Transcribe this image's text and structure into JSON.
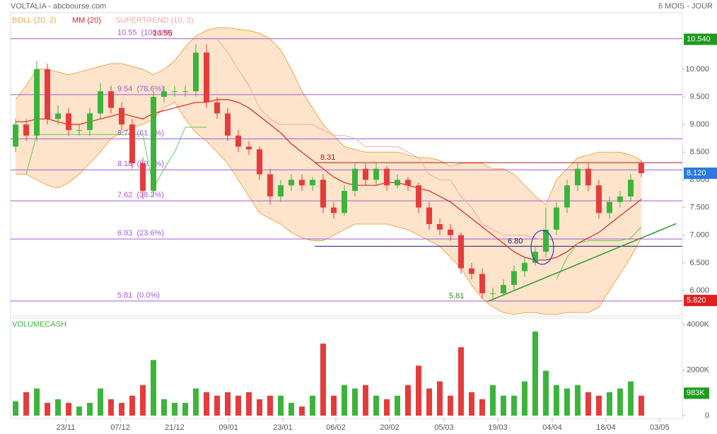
{
  "chart_data": {
    "type": "candlestick",
    "title": "VOLTALIA - abcbourse.com",
    "period": "6 MOIS - JOUR",
    "xlim": [
      -0.47,
      62.87
    ],
    "xticks": [
      {
        "value": 4.73,
        "label": "23/11"
      },
      {
        "value": 9.87,
        "label": "07/12"
      },
      {
        "value": 15.0,
        "label": "21/12"
      },
      {
        "value": 20.07,
        "label": "09/01"
      },
      {
        "value": 25.2,
        "label": "23/01"
      },
      {
        "value": 30.2,
        "label": "06/02"
      },
      {
        "value": 35.27,
        "label": "20/02"
      },
      {
        "value": 40.4,
        "label": "05/03"
      },
      {
        "value": 45.47,
        "label": "19/03"
      },
      {
        "value": 50.6,
        "label": "04/04"
      },
      {
        "value": 55.67,
        "label": "18/04"
      },
      {
        "value": 60.73,
        "label": "03/05"
      }
    ],
    "ylim": [
      5.54,
      11.02
    ],
    "yticks": [
      {
        "value": 10,
        "label": "10.000"
      },
      {
        "value": 9.5,
        "label": "9.500"
      },
      {
        "value": 9,
        "label": "9.000"
      },
      {
        "value": 8.5,
        "label": "8.500"
      },
      {
        "value": 8,
        "label": "8.000"
      },
      {
        "value": 7.5,
        "label": "7.500"
      },
      {
        "value": 7,
        "label": "7.000"
      },
      {
        "value": 6.5,
        "label": "6.500"
      },
      {
        "value": 6,
        "label": "6.000"
      }
    ],
    "up_color": "#3cb43c",
    "down_color": "#e43c3c",
    "candles": {
      "open": [
        8.6,
        9.0,
        8.8,
        10.0,
        9.1,
        9.2,
        8.9,
        8.9,
        9.2,
        9.6,
        9.3,
        9.0,
        8.3,
        7.8,
        9.5,
        9.6,
        9.6,
        9.6,
        10.3,
        9.4,
        9.2,
        8.8,
        8.6,
        8.55,
        8.1,
        7.7,
        7.9,
        8.0,
        7.9,
        8.0,
        7.5,
        7.4,
        7.8,
        8.2,
        8.0,
        8.2,
        7.9,
        8.0,
        7.9,
        7.5,
        7.2,
        7.1,
        7.0,
        6.4,
        6.3,
        5.95,
        5.95,
        6.1,
        6.35,
        6.5,
        6.7,
        7.1,
        7.5,
        7.9,
        8.2,
        7.9,
        7.4,
        7.6,
        7.7,
        8.3
      ],
      "high": [
        9.1,
        9.1,
        10.15,
        10.1,
        9.35,
        9.3,
        9.0,
        9.3,
        9.75,
        9.7,
        9.4,
        9.1,
        8.4,
        9.6,
        9.7,
        9.7,
        9.7,
        10.45,
        10.45,
        9.5,
        9.3,
        8.9,
        8.7,
        8.6,
        8.2,
        8.0,
        8.1,
        8.1,
        8.05,
        8.1,
        7.6,
        7.9,
        8.3,
        8.3,
        8.3,
        8.25,
        8.1,
        8.05,
        7.95,
        7.6,
        7.3,
        7.2,
        7.05,
        6.5,
        6.4,
        6.05,
        6.2,
        6.45,
        6.6,
        6.8,
        7.5,
        7.6,
        8.0,
        8.3,
        8.3,
        8.0,
        7.7,
        7.8,
        8.1,
        8.35
      ],
      "low": [
        8.5,
        8.7,
        8.7,
        9.0,
        9.0,
        8.8,
        8.8,
        8.8,
        9.1,
        9.2,
        8.9,
        8.2,
        7.65,
        7.7,
        9.4,
        9.5,
        9.5,
        9.5,
        9.3,
        9.1,
        8.7,
        8.5,
        8.45,
        8.0,
        7.55,
        7.6,
        7.8,
        7.8,
        7.8,
        7.4,
        7.3,
        7.35,
        7.7,
        7.9,
        7.9,
        7.8,
        7.85,
        7.8,
        7.4,
        7.1,
        7.0,
        6.9,
        6.3,
        6.2,
        5.85,
        5.85,
        5.9,
        6.0,
        6.25,
        6.45,
        6.6,
        7.0,
        7.4,
        7.8,
        7.8,
        7.3,
        7.3,
        7.5,
        7.6,
        8.05
      ],
      "close": [
        9.0,
        8.8,
        10.0,
        9.1,
        9.2,
        8.9,
        8.9,
        9.2,
        9.6,
        9.3,
        9.0,
        8.3,
        7.8,
        9.5,
        9.6,
        9.6,
        9.6,
        10.3,
        9.4,
        9.2,
        8.8,
        8.6,
        8.55,
        8.1,
        7.7,
        7.9,
        8.0,
        7.9,
        8.0,
        7.5,
        7.4,
        7.8,
        8.2,
        8.0,
        8.2,
        7.9,
        8.0,
        7.9,
        7.5,
        7.2,
        7.1,
        7.0,
        6.4,
        6.3,
        5.95,
        5.95,
        6.1,
        6.35,
        6.5,
        6.7,
        7.1,
        7.5,
        7.9,
        8.2,
        7.9,
        7.4,
        7.6,
        7.7,
        8.0,
        8.12
      ]
    },
    "series": [
      {
        "name": "BOLL (20, 2)",
        "color": "#f2a550",
        "fill": "#fde4ca",
        "upper": [
          9.45,
          9.7,
          10.0,
          10.0,
          9.95,
          9.9,
          9.95,
          10.0,
          10.05,
          10.1,
          10.1,
          10.05,
          10.0,
          9.9,
          10.0,
          10.15,
          10.4,
          10.6,
          10.7,
          10.75,
          10.75,
          10.72,
          10.7,
          10.65,
          10.55,
          10.35,
          10.0,
          9.6,
          9.3,
          9.0,
          8.8,
          8.6,
          8.55,
          8.5,
          8.5,
          8.5,
          8.5,
          8.45,
          8.4,
          8.4,
          8.35,
          8.25,
          8.3,
          8.3,
          8.3,
          8.2,
          8.2,
          8.1,
          7.9,
          7.7,
          7.55,
          8.0,
          8.2,
          8.4,
          8.45,
          8.5,
          8.5,
          8.5,
          8.45,
          8.35
        ],
        "lower": [
          8.1,
          8.1,
          8.0,
          7.9,
          7.85,
          7.95,
          8.1,
          8.3,
          8.5,
          8.75,
          8.85,
          8.95,
          9.0,
          9.1,
          9.3,
          9.4,
          9.1,
          8.85,
          8.7,
          8.5,
          8.3,
          8.0,
          7.7,
          7.4,
          7.3,
          7.2,
          7.05,
          6.95,
          6.9,
          6.9,
          7.0,
          7.1,
          7.2,
          7.2,
          7.2,
          7.2,
          7.15,
          7.1,
          7.0,
          6.9,
          6.8,
          6.6,
          6.4,
          6.1,
          5.85,
          5.7,
          5.6,
          5.57,
          5.6,
          5.6,
          5.57,
          5.57,
          5.6,
          5.6,
          5.6,
          5.7,
          6.0,
          6.3,
          6.6,
          6.95
        ]
      },
      {
        "name": "MM (20)",
        "color": "#e02020",
        "values": [
          9.05,
          9.05,
          9.1,
          9.1,
          9.05,
          9.0,
          9.0,
          9.05,
          9.1,
          9.15,
          9.2,
          9.15,
          9.1,
          9.2,
          9.25,
          9.3,
          9.35,
          9.4,
          9.4,
          9.45,
          9.45,
          9.4,
          9.3,
          9.15,
          9.0,
          8.85,
          8.65,
          8.5,
          8.35,
          8.2,
          8.05,
          7.95,
          7.9,
          7.9,
          7.9,
          7.95,
          7.95,
          7.9,
          7.85,
          7.8,
          7.7,
          7.6,
          7.45,
          7.3,
          7.15,
          7.0,
          6.85,
          6.7,
          6.6,
          6.55,
          6.55,
          6.6,
          6.7,
          6.85,
          6.95,
          7.05,
          7.2,
          7.35,
          7.5,
          7.65
        ]
      },
      {
        "name": "SUPERTREND (10, 3)",
        "color": "#f4a8a8",
        "values": [
          null,
          8.1,
          8.82,
          8.82,
          8.82,
          8.82,
          8.82,
          8.82,
          8.82,
          8.82,
          8.82,
          8.82,
          8.82,
          7.85,
          8.2,
          8.5,
          8.95,
          8.95,
          8.95,
          10.55,
          10.3,
          10.0,
          9.7,
          9.3,
          9.1,
          9.0,
          9.0,
          9.0,
          9.0,
          8.9,
          8.8,
          8.8,
          8.75,
          8.6,
          8.6,
          8.6,
          8.6,
          8.5,
          8.4,
          8.1,
          8.0,
          8.0,
          7.7,
          7.5,
          7.2,
          7.1,
          7.0,
          7.0,
          7.0,
          6.95,
          6.9,
          6.2,
          6.6,
          6.85,
          6.9,
          6.9,
          6.9,
          6.9,
          6.95,
          7.15
        ],
        "colors": [
          "#5ccc5c",
          "#5ccc5c",
          "#5ccc5c",
          "#5ccc5c",
          "#5ccc5c",
          "#5ccc5c",
          "#5ccc5c",
          "#5ccc5c",
          "#5ccc5c",
          "#5ccc5c",
          "#5ccc5c",
          "#5ccc5c",
          "#5ccc5c",
          "#5ccc5c",
          "#5ccc5c",
          "#5ccc5c",
          "#5ccc5c",
          "#5ccc5c",
          "#5ccc5c",
          "#f4a8a8",
          "#f4a8a8",
          "#f4a8a8",
          "#f4a8a8",
          "#f4a8a8",
          "#f4a8a8",
          "#f4a8a8",
          "#f4a8a8",
          "#f4a8a8",
          "#f4a8a8",
          "#f4a8a8",
          "#f4a8a8",
          "#f4a8a8",
          "#f4a8a8",
          "#f4a8a8",
          "#f4a8a8",
          "#f4a8a8",
          "#f4a8a8",
          "#f4a8a8",
          "#f4a8a8",
          "#f4a8a8",
          "#f4a8a8",
          "#f4a8a8",
          "#f4a8a8",
          "#f4a8a8",
          "#f4a8a8",
          "#f4a8a8",
          "#f4a8a8",
          "#f4a8a8",
          "#f4a8a8",
          "#f4a8a8",
          "#f4a8a8",
          "#5ccc5c",
          "#5ccc5c",
          "#5ccc5c",
          "#5ccc5c",
          "#5ccc5c",
          "#5ccc5c",
          "#5ccc5c",
          "#5ccc5c",
          "#5ccc5c"
        ]
      }
    ],
    "level_color": "#a857dc",
    "levels": [
      {
        "value": 10.55,
        "label": "10.55  (100.0%)"
      },
      {
        "value": 9.54,
        "label": "9.54  (78.6%)"
      },
      {
        "value": 8.74,
        "label": "8.74  (61.8%)"
      },
      {
        "value": 8.18,
        "label": "8.18  (50.0%)"
      },
      {
        "value": 7.62,
        "label": "7.62  (38.2%)"
      },
      {
        "value": 6.93,
        "label": "6.93  (23.6%)"
      },
      {
        "value": 5.81,
        "label": "5.81  (0.0%)"
      }
    ],
    "lines": [
      {
        "value": 8.31,
        "label": "8.31",
        "color": "#b01818"
      },
      {
        "value": 6.8,
        "label": "6.80",
        "color": "#1a1a7a"
      }
    ],
    "annotations": [
      {
        "value": 10.55,
        "label": "10.55",
        "color": "#d02020"
      },
      {
        "value": 5.81,
        "label": "5.81",
        "color": "#2a8a2a"
      }
    ],
    "trendline": {
      "x": [
        44.5,
        62.3
      ],
      "y": [
        5.8,
        7.21
      ],
      "color": "#2a9a2a"
    },
    "price_tags": [
      {
        "value": 10.54,
        "label": "10.540",
        "color": "#1e9a1e"
      },
      {
        "value": 8.12,
        "label": "8.120",
        "color": "#2a78e0"
      },
      {
        "value": 5.82,
        "label": "5.820",
        "color": "#e02020"
      }
    ],
    "volume": {
      "name": "VOLUMECASH",
      "color": "#3cb43c",
      "values": [
        625,
        1030,
        1190,
        560,
        720,
        560,
        400,
        560,
        1190,
        720,
        560,
        875,
        1340,
        2440,
        720,
        560,
        560,
        1190,
        1030,
        875,
        1030,
        875,
        1030,
        720,
        875,
        875,
        560,
        400,
        875,
        3160,
        875,
        1340,
        1190,
        1340,
        875,
        720,
        875,
        1340,
        2190,
        1190,
        1500,
        875,
        3000,
        1030,
        720,
        1340,
        875,
        875,
        1500,
        3690,
        1970,
        1340,
        1190,
        1340,
        1030,
        875,
        1030,
        1190,
        1500,
        875
      ],
      "ylim": [
        0,
        4000
      ],
      "yticks": [
        0,
        {
          "value": 2000,
          "label": "2000K"
        },
        {
          "value": 4000,
          "label": "4000K"
        }
      ],
      "tag": {
        "value": 983,
        "label": "983K",
        "color": "#1e9a1e"
      }
    }
  }
}
